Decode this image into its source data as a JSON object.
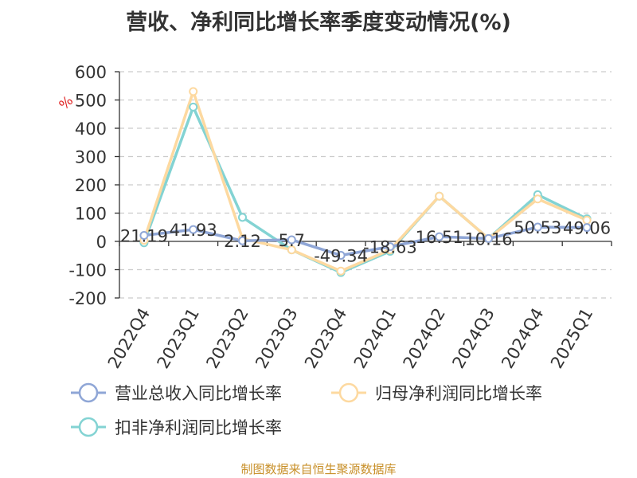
{
  "title": "营收、净利同比增长率季度变动情况(%)",
  "source": "制图数据来自恒生聚源数据库",
  "colors": {
    "revenue": "#8fa6d6",
    "net_profit": "#fdd9a0",
    "deducted_net_profit": "#83d3d3",
    "axis": "#333333",
    "grid": "#cccccc",
    "unit": "#e02020",
    "source": "#c8902a",
    "text": "#333333"
  },
  "chart_data": {
    "type": "line",
    "title": "营收、净利同比增长率季度变动情况(%)",
    "ylabel": "%",
    "ylim": [
      -200,
      600
    ],
    "yticks": [
      -200,
      -100,
      0,
      100,
      200,
      300,
      400,
      500,
      600
    ],
    "grid": true,
    "legend_position": "bottom",
    "categories": [
      "2022Q4",
      "2023Q1",
      "2023Q2",
      "2023Q3",
      "2023Q4",
      "2024Q1",
      "2024Q2",
      "2024Q3",
      "2024Q4",
      "2025Q1"
    ],
    "series": [
      {
        "name": "营业总收入同比增长率",
        "values": [
          21.19,
          41.93,
          2.12,
          5.7,
          -49.34,
          -18.63,
          16.51,
          10.16,
          50.53,
          49.06
        ],
        "labels": [
          "21.19",
          "41.93",
          "2.12",
          "5.7",
          "-49.34",
          "-18.63",
          "16.51",
          "10.16",
          "50.53",
          "49.06"
        ]
      },
      {
        "name": "归母净利润同比增长率",
        "values": [
          4,
          530,
          10,
          -30,
          -105,
          -30,
          160,
          10,
          150,
          75
        ]
      },
      {
        "name": "扣非净利润同比增长率",
        "values": [
          -5,
          475,
          85,
          -30,
          -110,
          -35,
          160,
          10,
          165,
          80
        ]
      }
    ]
  }
}
